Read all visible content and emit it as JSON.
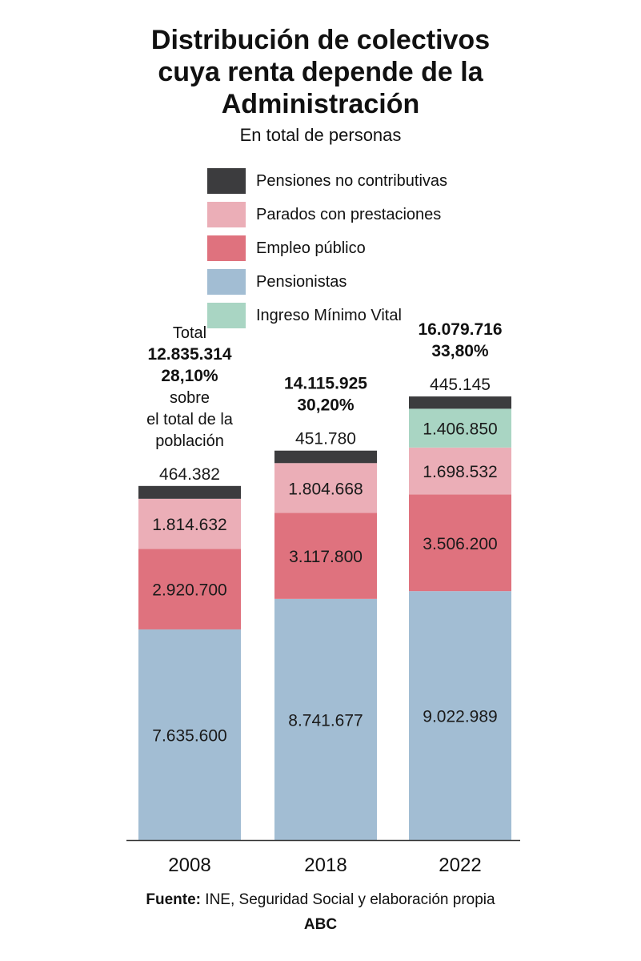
{
  "colors": {
    "Pensiones no contributivas": "#3c3c3e",
    "Parados con prestaciones": "#ebaeb7",
    "Empleo público": "#df727e",
    "Pensionistas": "#a2bdd3",
    "Ingreso Mínimo Vital": "#a9d5c3"
  },
  "chart_data": {
    "type": "bar",
    "stacked": true,
    "title": "Distribución de colectivos cuya renta depende de la Administración",
    "subtitle": "En total de personas",
    "title_lines": [
      "Distribución de colectivos",
      "cuya renta depende de la",
      "Administración"
    ],
    "categories": [
      "2008",
      "2018",
      "2022"
    ],
    "series": [
      {
        "name": "Pensionistas",
        "values": [
          7635600,
          8741677,
          9022989
        ],
        "labels": [
          "7.635.600",
          "8.741.677",
          "9.022.989"
        ]
      },
      {
        "name": "Empleo público",
        "values": [
          2920700,
          3117800,
          3506200
        ],
        "labels": [
          "2.920.700",
          "3.117.800",
          "3.506.200"
        ]
      },
      {
        "name": "Parados con prestaciones",
        "values": [
          1814632,
          1804668,
          1698532
        ],
        "labels": [
          "1.814.632",
          "1.804.668",
          "1.698.532"
        ]
      },
      {
        "name": "Ingreso Mínimo Vital",
        "values": [
          0,
          0,
          1406850
        ],
        "labels": [
          "",
          "",
          "1.406.850"
        ]
      },
      {
        "name": "Pensiones no contributivas",
        "values": [
          464382,
          451780,
          445145
        ],
        "labels": [
          "464.382",
          "451.780",
          "445.145"
        ]
      }
    ],
    "legend": [
      "Pensiones no contributivas",
      "Parados con prestaciones",
      "Empleo público",
      "Pensionistas",
      "Ingreso Mínimo Vital"
    ],
    "totals": [
      {
        "lines": [
          {
            "text": "Total",
            "bold": false
          },
          {
            "text": "12.835.314",
            "bold": true
          },
          {
            "text": "28,10%",
            "bold": true
          },
          {
            "text": "sobre",
            "bold": false
          },
          {
            "text": "el total de la",
            "bold": false
          },
          {
            "text": "población",
            "bold": false
          }
        ]
      },
      {
        "lines": [
          {
            "text": "14.115.925",
            "bold": true
          },
          {
            "text": "30,20%",
            "bold": true
          }
        ]
      },
      {
        "lines": [
          {
            "text": "16.079.716",
            "bold": true
          },
          {
            "text": "33,80%",
            "bold": true
          }
        ]
      }
    ],
    "xlabel": "",
    "ylabel": "",
    "ylim": [
      0,
      16500000
    ],
    "grid": false,
    "legend_position": "top"
  },
  "footer": {
    "source_label": "Fuente:",
    "source_text": " INE, Seguridad Social y elaboración propia",
    "brand": "ABC"
  }
}
